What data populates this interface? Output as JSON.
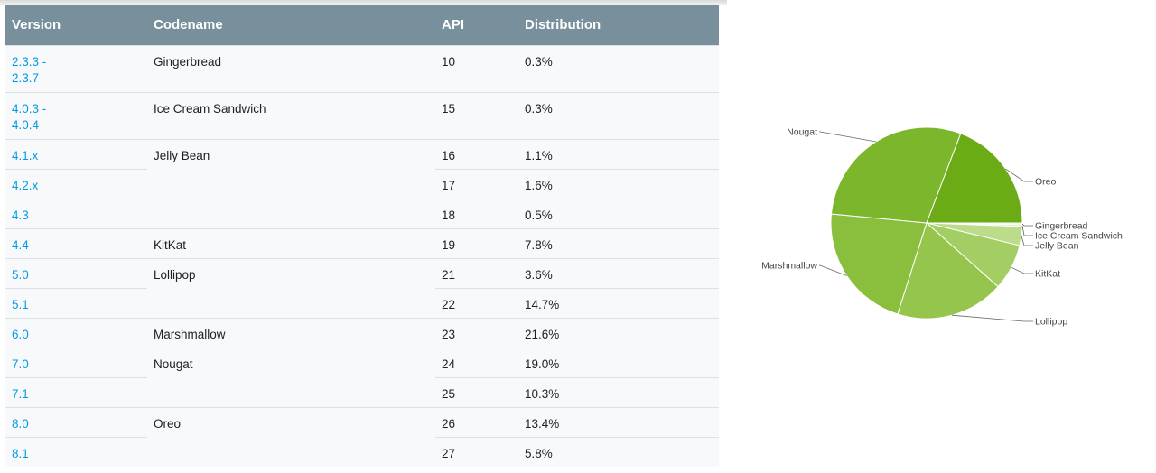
{
  "table": {
    "headers": [
      "Version",
      "Codename",
      "API",
      "Distribution"
    ],
    "rows": [
      {
        "version": "2.3.3 -\n2.3.7",
        "codename": "Gingerbread",
        "api": "10",
        "distribution": "0.3%"
      },
      {
        "version": "4.0.3 -\n4.0.4",
        "codename": "Ice Cream Sandwich",
        "api": "15",
        "distribution": "0.3%"
      },
      {
        "version": "4.1.x",
        "codename": "Jelly Bean",
        "api": "16",
        "distribution": "1.1%"
      },
      {
        "version": "4.2.x",
        "codename": "",
        "api": "17",
        "distribution": "1.6%"
      },
      {
        "version": "4.3",
        "codename": "",
        "api": "18",
        "distribution": "0.5%"
      },
      {
        "version": "4.4",
        "codename": "KitKat",
        "api": "19",
        "distribution": "7.8%"
      },
      {
        "version": "5.0",
        "codename": "Lollipop",
        "api": "21",
        "distribution": "3.6%"
      },
      {
        "version": "5.1",
        "codename": "",
        "api": "22",
        "distribution": "14.7%"
      },
      {
        "version": "6.0",
        "codename": "Marshmallow",
        "api": "23",
        "distribution": "21.6%"
      },
      {
        "version": "7.0",
        "codename": "Nougat",
        "api": "24",
        "distribution": "19.0%"
      },
      {
        "version": "7.1",
        "codename": "",
        "api": "25",
        "distribution": "10.3%"
      },
      {
        "version": "8.0",
        "codename": "Oreo",
        "api": "26",
        "distribution": "13.4%"
      },
      {
        "version": "8.1",
        "codename": "",
        "api": "27",
        "distribution": "5.8%"
      }
    ]
  },
  "colors": {
    "header_bg": "#78909c",
    "link": "#039be5",
    "row_bg": "#f7f9fa",
    "border": "#dde1e3"
  },
  "chart_data": {
    "type": "pie",
    "title": "",
    "slices": [
      {
        "label": "Gingerbread",
        "value": 0.3,
        "color": "#eef5e1"
      },
      {
        "label": "Ice Cream Sandwich",
        "value": 0.3,
        "color": "#d8eab8"
      },
      {
        "label": "Jelly Bean",
        "value": 3.2,
        "color": "#bcdc8a"
      },
      {
        "label": "KitKat",
        "value": 7.8,
        "color": "#a3ce63"
      },
      {
        "label": "Lollipop",
        "value": 18.3,
        "color": "#95c54c"
      },
      {
        "label": "Marshmallow",
        "value": 21.6,
        "color": "#8abf3d"
      },
      {
        "label": "Nougat",
        "value": 29.3,
        "color": "#7cb62c"
      },
      {
        "label": "Oreo",
        "value": 19.2,
        "color": "#6aab16"
      }
    ]
  }
}
